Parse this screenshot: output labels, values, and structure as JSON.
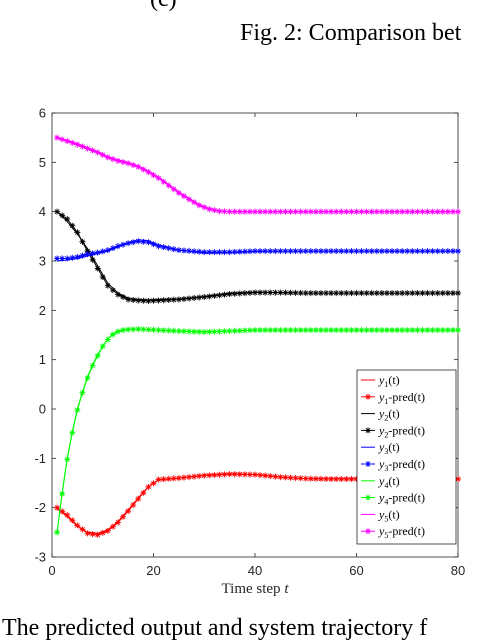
{
  "caption_top": "Fig. 2: Comparison bet",
  "caption_fragment": "(c)",
  "body_text_fragment": "The predicted output and system trajectory f",
  "chart_data": {
    "type": "line",
    "title": "",
    "xlabel": "Time step t",
    "ylabel": "",
    "xlim": [
      0,
      80
    ],
    "ylim": [
      -3,
      6
    ],
    "xticks": [
      "0",
      "20",
      "40",
      "60",
      "80"
    ],
    "yticks": [
      "-3",
      "-2",
      "-1",
      "0",
      "1",
      "2",
      "3",
      "4",
      "5",
      "6"
    ],
    "grid": false,
    "legend_position": "bottom-right",
    "series": [
      {
        "name": "y1(t)",
        "sub": "1",
        "label": "(t)",
        "color": "#ff0000",
        "marker": "none",
        "x": [
          1,
          3,
          5,
          7,
          9,
          11,
          13,
          15,
          17,
          19,
          21,
          25,
          30,
          35,
          40,
          45,
          50,
          55,
          60,
          65,
          70,
          75,
          80
        ],
        "values": [
          -2.02,
          -2.18,
          -2.38,
          -2.5,
          -2.52,
          -2.45,
          -2.28,
          -2.05,
          -1.8,
          -1.57,
          -1.44,
          -1.4,
          -1.34,
          -1.31,
          -1.33,
          -1.38,
          -1.41,
          -1.41,
          -1.41,
          -1.41,
          -1.41,
          -1.41,
          -1.41
        ]
      },
      {
        "name": "y1-pred(t)",
        "sub": "1",
        "label": "-pred(t)",
        "color": "#ff0000",
        "marker": "star",
        "x": [
          1,
          3,
          5,
          7,
          9,
          11,
          13,
          15,
          17,
          19,
          21,
          25,
          30,
          35,
          40,
          45,
          50,
          55,
          60,
          65,
          70,
          75,
          80
        ],
        "values": [
          -2.0,
          -2.15,
          -2.36,
          -2.52,
          -2.55,
          -2.47,
          -2.3,
          -2.07,
          -1.82,
          -1.58,
          -1.43,
          -1.4,
          -1.35,
          -1.32,
          -1.33,
          -1.38,
          -1.41,
          -1.42,
          -1.42,
          -1.42,
          -1.42,
          -1.42,
          -1.42
        ]
      },
      {
        "name": "y2(t)",
        "sub": "2",
        "label": "(t)",
        "color": "#000000",
        "marker": "none",
        "x": [
          1,
          3,
          5,
          7,
          9,
          11,
          13,
          15,
          17,
          19,
          21,
          25,
          30,
          35,
          40,
          45,
          50,
          55,
          60,
          65,
          70,
          75,
          80
        ],
        "values": [
          4.0,
          3.8,
          3.55,
          3.25,
          2.9,
          2.55,
          2.35,
          2.25,
          2.22,
          2.21,
          2.22,
          2.23,
          2.28,
          2.35,
          2.37,
          2.36,
          2.35,
          2.35,
          2.35,
          2.35,
          2.35,
          2.35,
          2.35
        ]
      },
      {
        "name": "y2-pred(t)",
        "sub": "2",
        "label": "-pred(t)",
        "color": "#000000",
        "marker": "star",
        "x": [
          1,
          3,
          5,
          7,
          9,
          11,
          13,
          15,
          17,
          19,
          21,
          25,
          30,
          35,
          40,
          45,
          50,
          55,
          60,
          65,
          70,
          75,
          80
        ],
        "values": [
          4.0,
          3.85,
          3.58,
          3.2,
          2.85,
          2.5,
          2.32,
          2.22,
          2.2,
          2.19,
          2.2,
          2.22,
          2.27,
          2.33,
          2.36,
          2.36,
          2.35,
          2.35,
          2.35,
          2.35,
          2.35,
          2.35,
          2.35
        ]
      },
      {
        "name": "y3(t)",
        "sub": "3",
        "label": "(t)",
        "color": "#0000ff",
        "marker": "none",
        "x": [
          1,
          3,
          5,
          7,
          9,
          11,
          13,
          15,
          17,
          19,
          21,
          25,
          30,
          35,
          40,
          45,
          50,
          55,
          60,
          65,
          70,
          75,
          80
        ],
        "values": [
          3.0,
          3.02,
          3.05,
          3.1,
          3.15,
          3.2,
          3.28,
          3.38,
          3.43,
          3.41,
          3.33,
          3.22,
          3.16,
          3.17,
          3.19,
          3.2,
          3.2,
          3.2,
          3.2,
          3.2,
          3.2,
          3.2,
          3.2
        ]
      },
      {
        "name": "y3-pred(t)",
        "sub": "3",
        "label": "-pred(t)",
        "color": "#0000ff",
        "marker": "star",
        "x": [
          1,
          3,
          5,
          7,
          9,
          11,
          13,
          15,
          17,
          19,
          21,
          25,
          30,
          35,
          40,
          45,
          50,
          55,
          60,
          65,
          70,
          75,
          80
        ],
        "values": [
          3.05,
          3.05,
          3.08,
          3.14,
          3.17,
          3.22,
          3.3,
          3.36,
          3.4,
          3.38,
          3.3,
          3.22,
          3.18,
          3.18,
          3.2,
          3.2,
          3.2,
          3.2,
          3.2,
          3.2,
          3.2,
          3.2,
          3.2
        ]
      },
      {
        "name": "y4(t)",
        "sub": "4",
        "label": "(t)",
        "color": "#00ff00",
        "marker": "none",
        "x": [
          1,
          2,
          3,
          4,
          5,
          6,
          7,
          8,
          9,
          10,
          11,
          12,
          13,
          14,
          15,
          17,
          19,
          21,
          25,
          30,
          35,
          40,
          45,
          50,
          55,
          60,
          65,
          70,
          75,
          80
        ],
        "values": [
          -2.5,
          -1.7,
          -1.0,
          -0.45,
          0.0,
          0.35,
          0.65,
          0.9,
          1.1,
          1.28,
          1.42,
          1.52,
          1.58,
          1.61,
          1.62,
          1.62,
          1.61,
          1.6,
          1.58,
          1.57,
          1.58,
          1.6,
          1.6,
          1.6,
          1.6,
          1.6,
          1.6,
          1.6,
          1.6,
          1.6
        ]
      },
      {
        "name": "y4-pred(t)",
        "sub": "4",
        "label": "-pred(t)",
        "color": "#00ff00",
        "marker": "star",
        "x": [
          1,
          2,
          3,
          4,
          5,
          6,
          7,
          8,
          9,
          10,
          11,
          12,
          13,
          14,
          15,
          17,
          19,
          21,
          25,
          30,
          35,
          40,
          45,
          50,
          55,
          60,
          65,
          70,
          75,
          80
        ],
        "values": [
          -2.5,
          -1.72,
          -1.02,
          -0.48,
          -0.02,
          0.33,
          0.63,
          0.88,
          1.08,
          1.27,
          1.41,
          1.51,
          1.57,
          1.6,
          1.61,
          1.62,
          1.61,
          1.6,
          1.58,
          1.56,
          1.58,
          1.6,
          1.6,
          1.6,
          1.6,
          1.6,
          1.6,
          1.6,
          1.6,
          1.6
        ]
      },
      {
        "name": "y5(t)",
        "sub": "5",
        "label": "(t)",
        "color": "#ff00ff",
        "marker": "none",
        "x": [
          1,
          3,
          5,
          7,
          9,
          11,
          13,
          15,
          17,
          19,
          21,
          23,
          25,
          27,
          29,
          31,
          33,
          35,
          40,
          45,
          50,
          55,
          60,
          65,
          70,
          75,
          80
        ],
        "values": [
          5.5,
          5.45,
          5.38,
          5.3,
          5.22,
          5.12,
          5.05,
          5.0,
          4.93,
          4.83,
          4.7,
          4.55,
          4.4,
          4.27,
          4.15,
          4.07,
          4.02,
          4.0,
          4.0,
          4.0,
          4.0,
          4.0,
          4.0,
          4.0,
          4.0,
          4.0,
          4.0
        ]
      },
      {
        "name": "y5-pred(t)",
        "sub": "5",
        "label": "-pred(t)",
        "color": "#ff00ff",
        "marker": "star",
        "x": [
          1,
          3,
          5,
          7,
          9,
          11,
          13,
          15,
          17,
          19,
          21,
          23,
          25,
          27,
          29,
          31,
          33,
          35,
          40,
          45,
          50,
          55,
          60,
          65,
          70,
          75,
          80
        ],
        "values": [
          5.5,
          5.43,
          5.36,
          5.28,
          5.2,
          5.1,
          5.03,
          4.98,
          4.91,
          4.8,
          4.68,
          4.53,
          4.38,
          4.25,
          4.13,
          4.05,
          4.01,
          4.0,
          4.0,
          4.0,
          4.0,
          4.0,
          4.0,
          4.0,
          4.0,
          4.0,
          4.0
        ]
      }
    ]
  }
}
